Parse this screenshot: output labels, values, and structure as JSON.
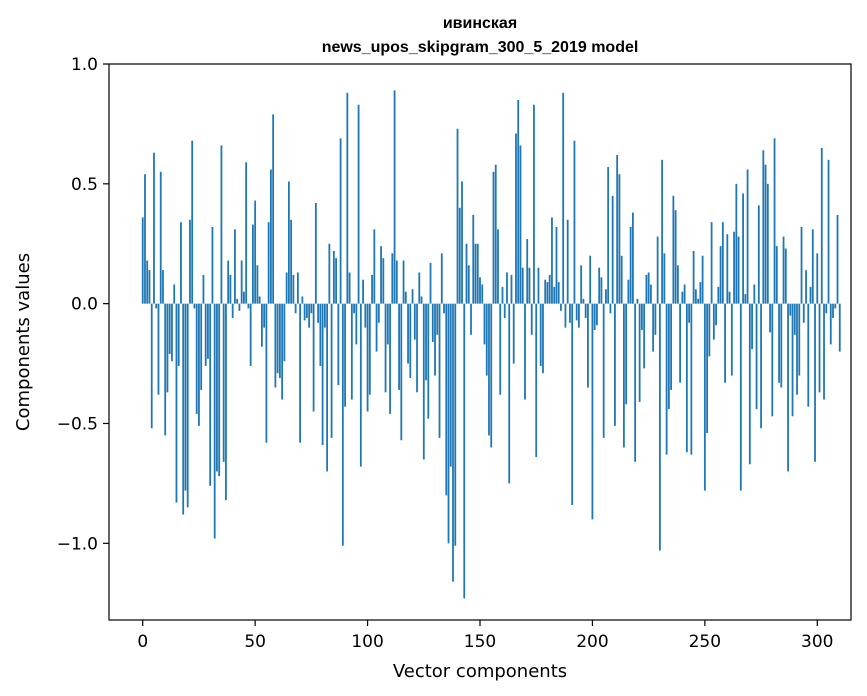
{
  "chart_data": {
    "type": "bar",
    "title_line1": "ивинская",
    "title_line2": "news_upos_skipgram_300_5_2019 model",
    "xlabel": "Vector components",
    "ylabel": "Components values",
    "xlim": [
      -15,
      315
    ],
    "ylim": [
      -1.32,
      1.0
    ],
    "xticks": [
      0,
      50,
      100,
      150,
      200,
      250,
      300
    ],
    "yticks": [
      -1.0,
      -0.5,
      0.0,
      0.5,
      1.0
    ],
    "ytick_labels": [
      "−1.0",
      "−0.5",
      "0.0",
      "0.5",
      "1.0"
    ],
    "bar_color": "#1f77b4",
    "values": [
      0.36,
      0.54,
      0.18,
      0.14,
      -0.52,
      0.63,
      -0.02,
      -0.38,
      0.55,
      0.14,
      -0.55,
      -0.37,
      -0.21,
      -0.24,
      0.08,
      -0.83,
      -0.26,
      0.34,
      -0.88,
      -0.78,
      -0.85,
      0.35,
      0.68,
      -0.02,
      -0.46,
      -0.51,
      -0.36,
      0.12,
      -0.26,
      -0.23,
      -0.76,
      0.32,
      -0.98,
      -0.7,
      -0.72,
      0.66,
      -0.66,
      -0.82,
      0.18,
      0.12,
      -0.06,
      0.31,
      0.02,
      -0.03,
      0.18,
      0.05,
      0.59,
      -0.02,
      -0.26,
      0.33,
      0.43,
      0.16,
      0.03,
      -0.18,
      -0.1,
      -0.58,
      0.34,
      0.56,
      0.79,
      -0.35,
      -0.29,
      -0.31,
      -0.4,
      -0.24,
      0.13,
      0.51,
      0.35,
      0.12,
      -0.04,
      0.13,
      -0.58,
      0.03,
      -0.07,
      -0.06,
      -0.1,
      -0.04,
      -0.45,
      0.42,
      -0.08,
      -0.26,
      -0.59,
      -0.1,
      -0.7,
      0.25,
      -0.56,
      0.22,
      0.19,
      -0.34,
      0.69,
      -1.01,
      -0.43,
      0.88,
      0.13,
      -0.4,
      -0.04,
      -0.17,
      0.83,
      -0.68,
      0.1,
      -0.1,
      -0.45,
      -0.38,
      0.12,
      0.31,
      -0.2,
      -0.08,
      0.24,
      0.19,
      -0.37,
      -0.17,
      -0.46,
      0.21,
      0.89,
      0.18,
      -0.36,
      -0.57,
      0.18,
      0.05,
      -0.25,
      -0.31,
      0.06,
      -0.15,
      -0.37,
      0.13,
      0.03,
      -0.65,
      -0.32,
      -0.48,
      0.17,
      -0.16,
      -0.3,
      -0.13,
      -0.56,
      0.21,
      -0.04,
      -0.8,
      -1.0,
      -0.68,
      -1.16,
      -1.01,
      0.73,
      0.4,
      0.51,
      -1.23,
      0.25,
      0.16,
      -0.13,
      0.37,
      0.25,
      0.25,
      0.11,
      0.08,
      -0.17,
      -0.3,
      -0.55,
      -0.6,
      0.55,
      0.58,
      0.31,
      -0.38,
      0.07,
      -0.06,
      0.13,
      -0.75,
      0.12,
      -0.25,
      0.71,
      0.85,
      0.66,
      0.15,
      -0.4,
      0.27,
      0.15,
      -0.13,
      0.83,
      -0.64,
      0.15,
      -0.26,
      -0.29,
      0.1,
      0.09,
      0.12,
      0.36,
      0.07,
      0.32,
      0.09,
      -0.03,
      0.88,
      -0.1,
      0.35,
      -0.08,
      -0.84,
      0.68,
      -0.07,
      -0.1,
      0.16,
      0.02,
      -0.06,
      -0.35,
      0.2,
      -0.9,
      -0.11,
      -0.09,
      0.15,
      0.11,
      -0.56,
      0.06,
      0.57,
      -0.04,
      0.45,
      -0.51,
      0.62,
      0.54,
      0.2,
      -0.6,
      -0.42,
      0.1,
      0.32,
      0.38,
      -0.66,
      0.02,
      -0.41,
      -0.11,
      -0.27,
      0.12,
      0.13,
      0.08,
      -0.2,
      -0.13,
      0.28,
      -1.03,
      0.6,
      0.21,
      -0.63,
      -0.44,
      -0.36,
      0.45,
      0.39,
      0.16,
      -0.33,
      0.05,
      0.08,
      -0.62,
      -0.08,
      -0.63,
      0.22,
      0.06,
      0.02,
      0.09,
      0.2,
      -0.78,
      -0.54,
      -0.22,
      0.34,
      -0.15,
      -0.09,
      0.07,
      0.24,
      0.34,
      -0.33,
      0.29,
      0.05,
      -0.3,
      0.3,
      0.5,
      0.28,
      -0.78,
      0.46,
      0.04,
      0.56,
      -0.67,
      -0.19,
      0.08,
      -0.44,
      0.41,
      -0.52,
      0.64,
      0.58,
      0.5,
      -0.12,
      -0.47,
      0.69,
      0.24,
      -0.33,
      -0.35,
      0.28,
      0.23,
      -0.7,
      -0.05,
      -0.47,
      -0.13,
      -0.38,
      -0.3,
      0.32,
      -0.08,
      0.14,
      -0.43,
      0.07,
      0.31,
      -0.66,
      0.21,
      -0.37,
      0.65,
      -0.4,
      -0.04,
      0.6,
      -0.17,
      -0.06,
      -0.02,
      0.37,
      -0.2
    ]
  }
}
